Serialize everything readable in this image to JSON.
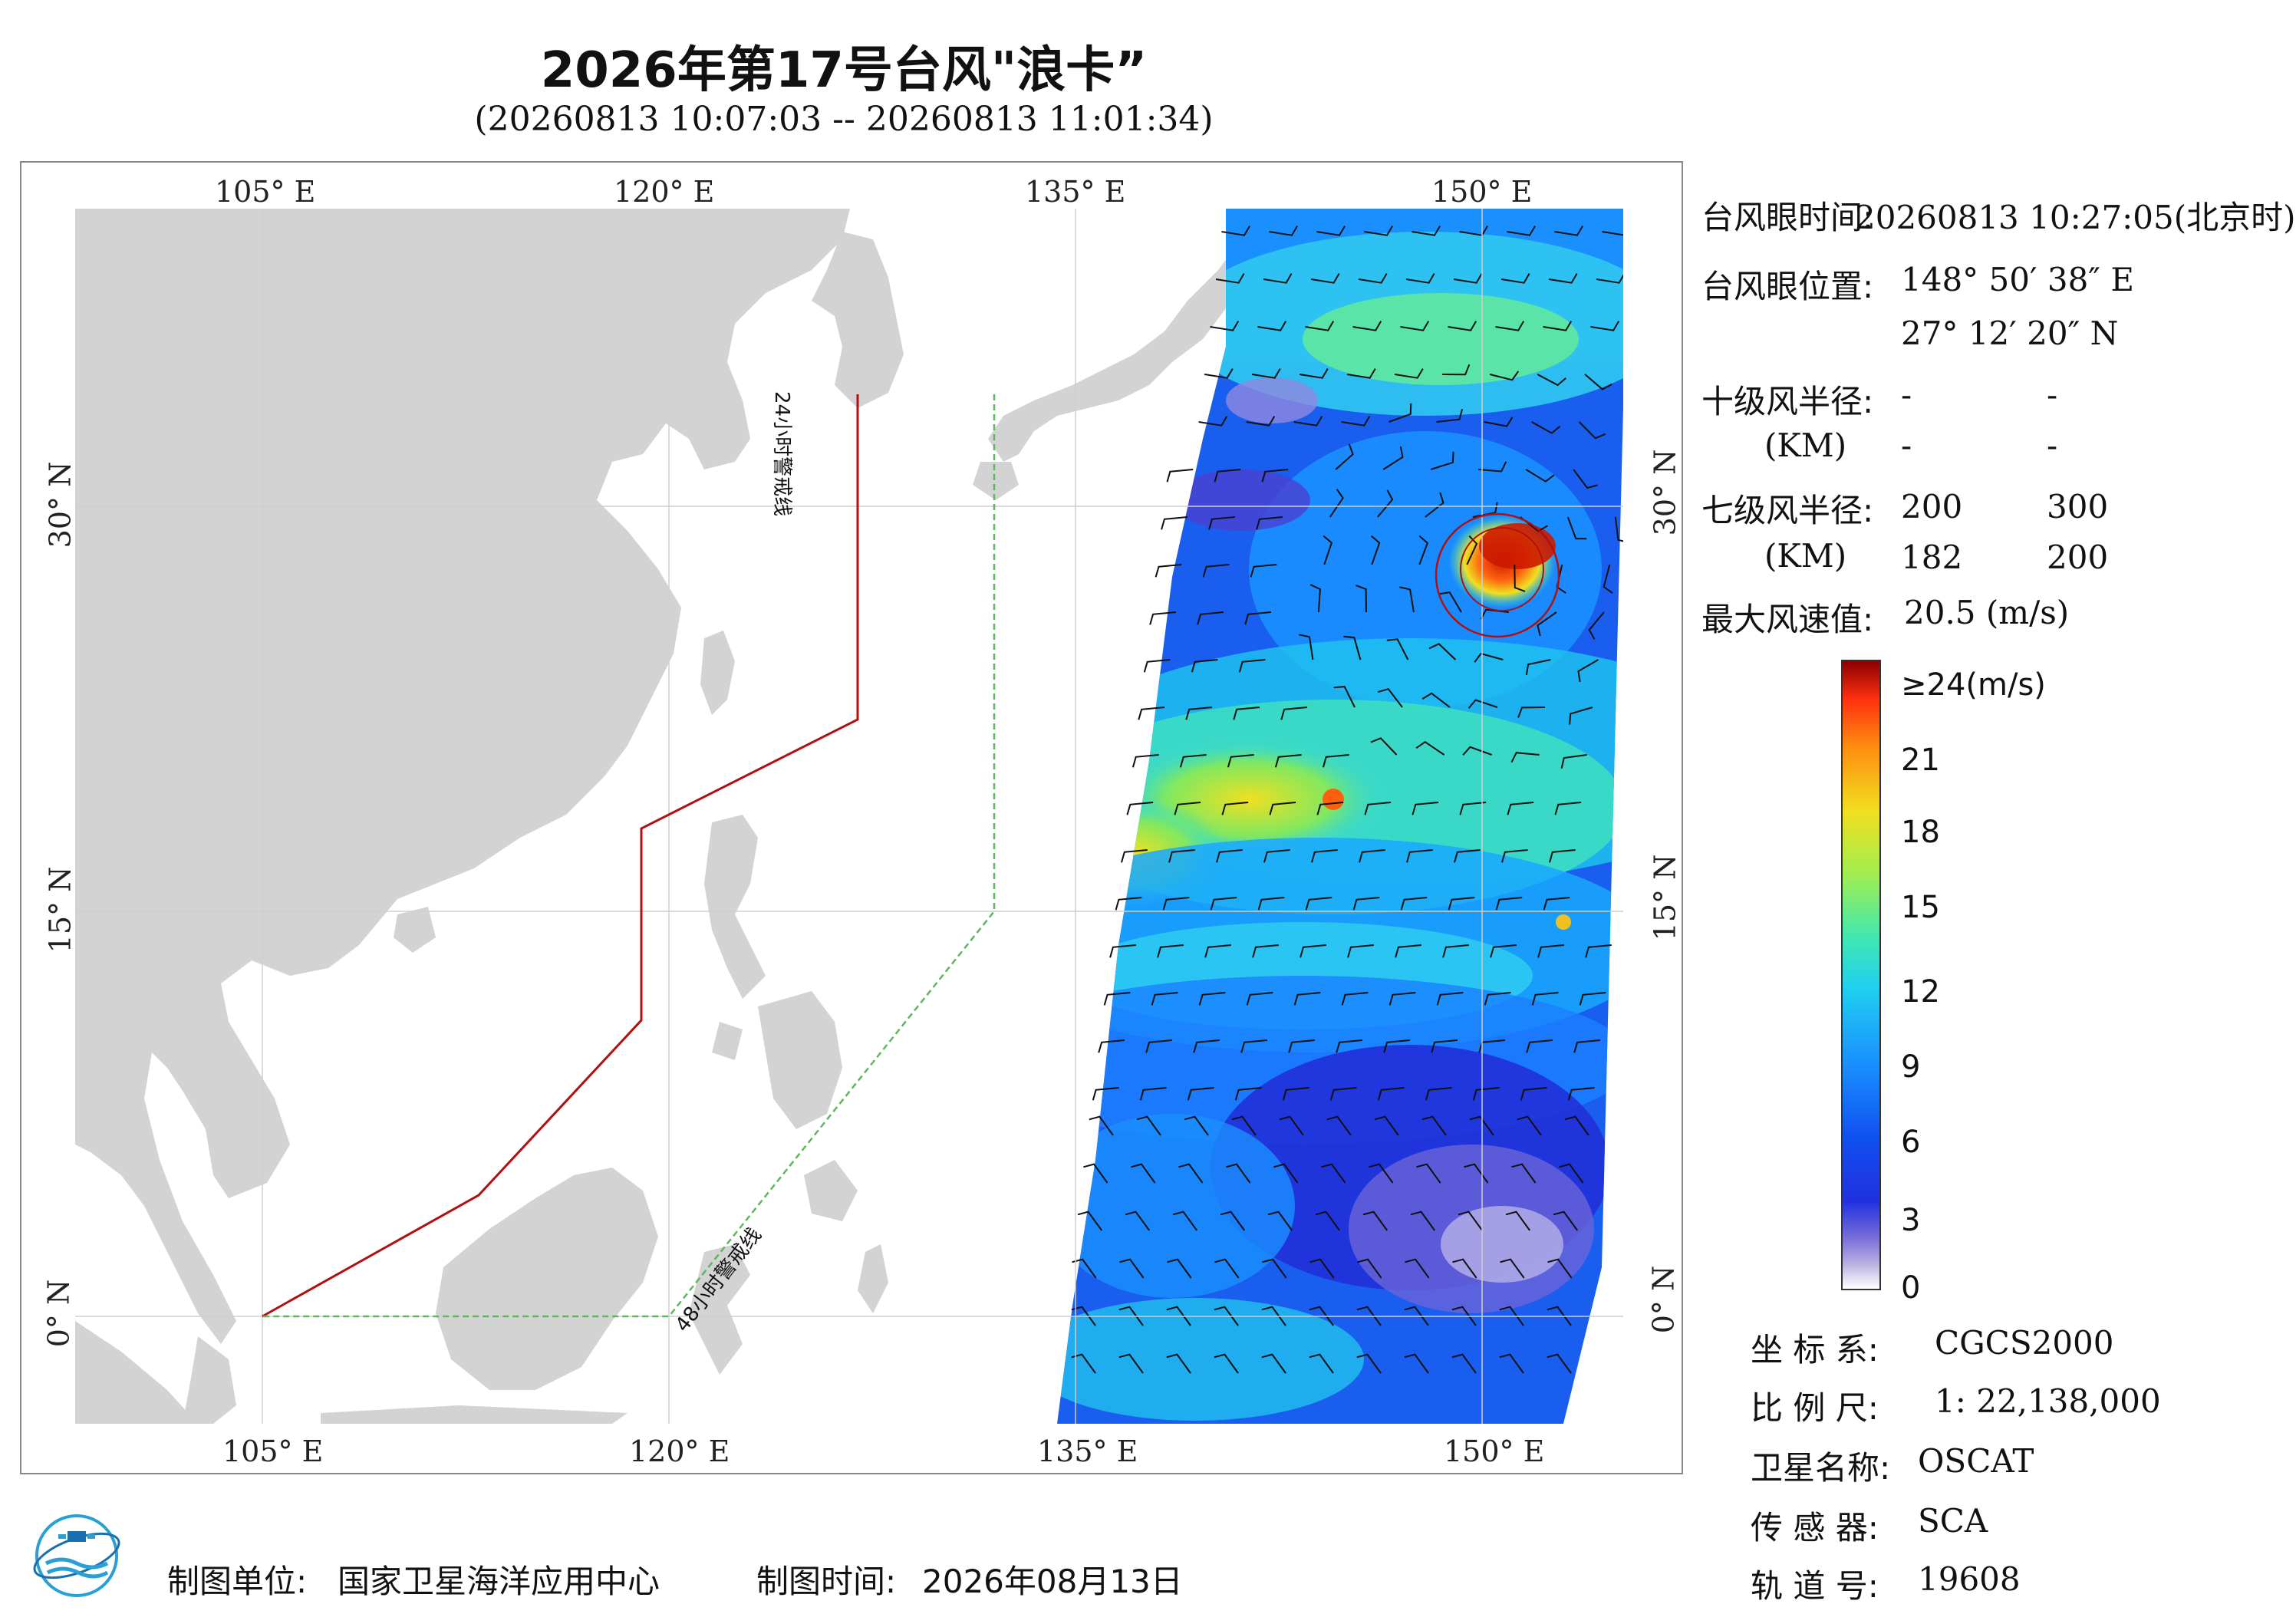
{
  "title": "2026年第17号台风\"浪卡”",
  "subtitle": "(20260813 10:07:03 -- 20260813 11:01:34)",
  "axes": {
    "top_lon": [
      "105° E",
      "120° E",
      "135° E",
      "150° E"
    ],
    "bottom_lon": [
      "105° E",
      "120° E",
      "135° E",
      "150° E"
    ],
    "left_lat": [
      "30° N",
      "15° N",
      "0° N"
    ],
    "right_lat": [
      "30° N",
      "15° N",
      "0° N"
    ]
  },
  "map_labels": {
    "line24": "24小时警戒线",
    "line48": "48小时警戒线"
  },
  "info": {
    "eye_time_label": "台风眼时间:",
    "eye_time_value": "20260813 10:27:05(北京时)",
    "eye_pos_label": "台风眼位置:",
    "eye_lon": "148° 50′ 38″ E",
    "eye_lat": "27° 12′ 20″ N",
    "r10_label": "十级风半径:",
    "r10_unit": "(KM)",
    "r10_values": [
      "-",
      "-",
      "-",
      "-"
    ],
    "r7_label": "七级风半径:",
    "r7_unit": "(KM)",
    "r7_values": [
      "200",
      "300",
      "182",
      "200"
    ],
    "max_wind_label": "最大风速值:",
    "max_wind_value": "20.5 (m/s)"
  },
  "colorbar": {
    "top_label": "≥24(m/s)",
    "ticks": [
      "21",
      "18",
      "15",
      "12",
      "9",
      "6",
      "3",
      "0"
    ]
  },
  "meta": {
    "crs_label": "坐 标 系:",
    "crs_value": "CGCS2000",
    "scale_label": "比 例 尺:",
    "scale_value": "1: 22,138,000",
    "sat_label": "卫星名称:",
    "sat_value": "OSCAT",
    "sensor_label": "传 感 器:",
    "sensor_value": "SCA",
    "orbit_label": "轨 道 号:",
    "orbit_value": "19608"
  },
  "footer": {
    "maker_label": "制图单位:",
    "maker_value": "国家卫星海洋应用中心",
    "date_label": "制图时间:",
    "date_value": "2026年08月13日"
  },
  "colors": {
    "land": "#d3d3d3",
    "ocean": "#ffffff",
    "line24": "#b01010",
    "line48": "#5cb85c"
  }
}
